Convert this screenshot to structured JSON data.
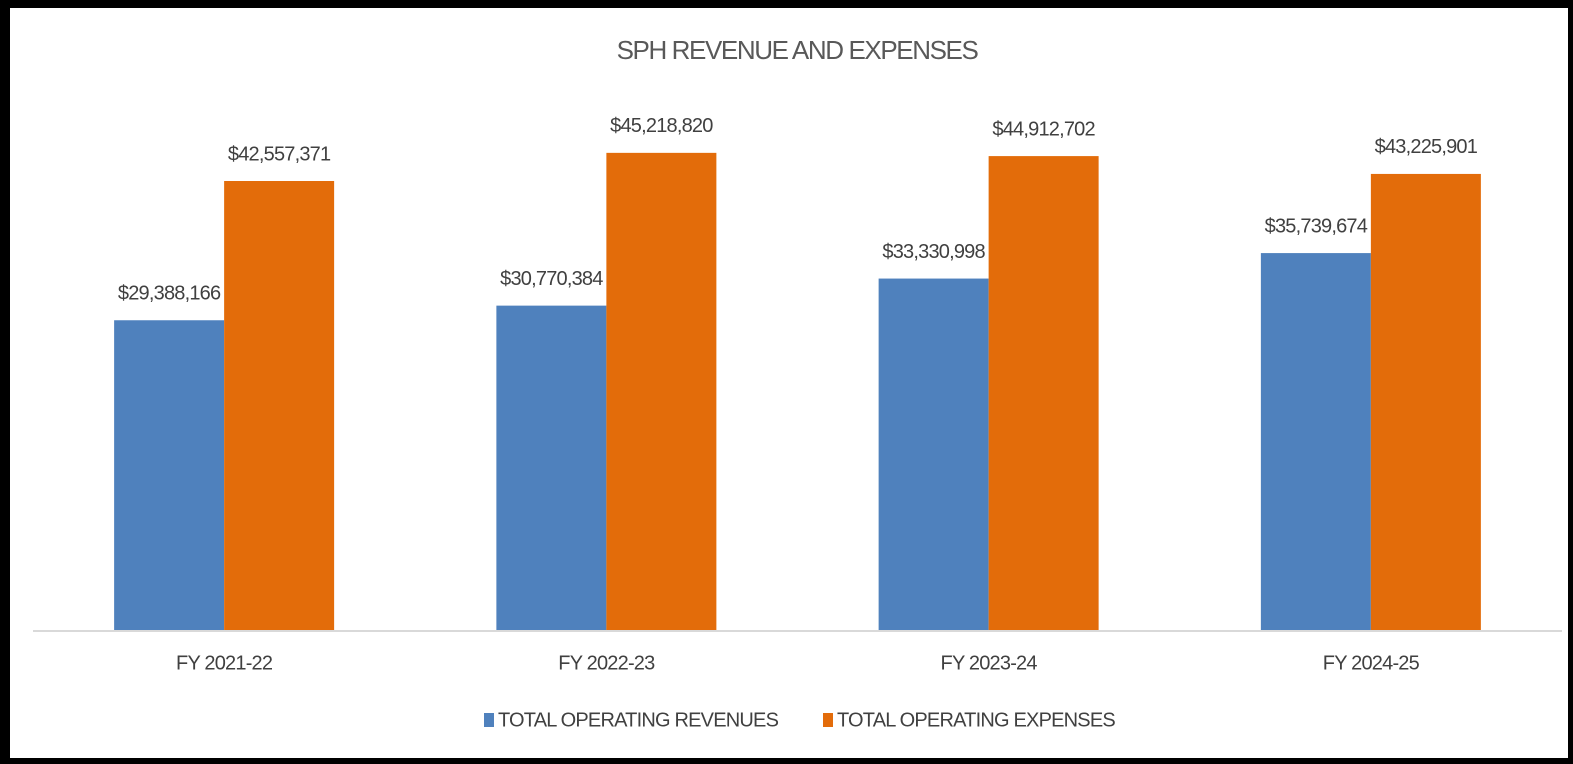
{
  "chart_data": {
    "type": "bar",
    "title": "SPH REVENUE AND EXPENSES",
    "categories": [
      "FY 2021-22",
      "FY 2022-23",
      "FY 2023-24",
      "FY 2024-25"
    ],
    "series": [
      {
        "name": "TOTAL OPERATING REVENUES",
        "color": "#4f81bd",
        "values": [
          29388166,
          30770384,
          33330998,
          35739674
        ],
        "value_labels": [
          "$29,388,166",
          "$30,770,384",
          "$33,330,998",
          "$35,739,674"
        ]
      },
      {
        "name": "TOTAL OPERATING EXPENSES",
        "color": "#e36c0a",
        "values": [
          42557371,
          45218820,
          44912702,
          43225901
        ],
        "value_labels": [
          "$42,557,371",
          "$45,218,820",
          "$44,912,702",
          "$43,225,901"
        ]
      }
    ],
    "ylim": [
      0,
      50000000
    ],
    "legend": "bottom"
  }
}
